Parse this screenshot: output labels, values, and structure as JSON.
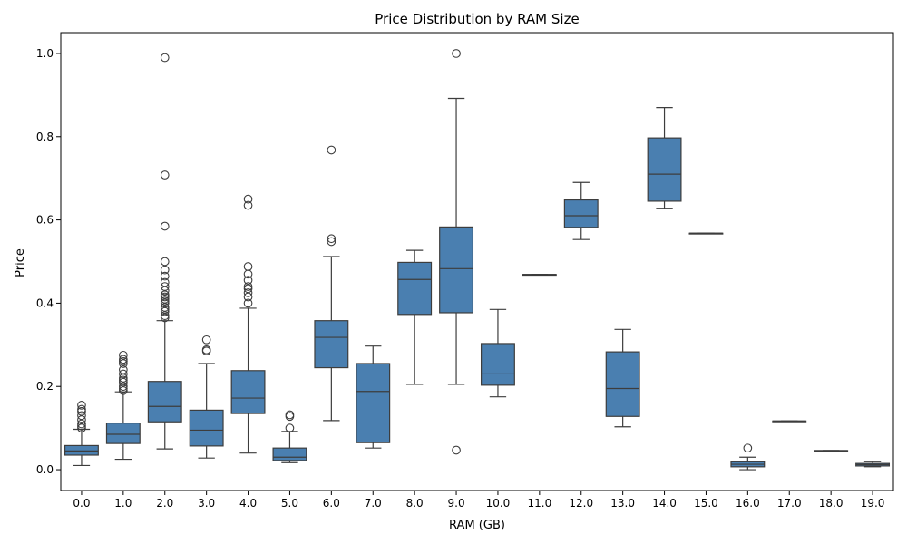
{
  "chart_data": {
    "type": "box",
    "title": "Price Distribution by RAM Size",
    "xlabel": "RAM (GB)",
    "ylabel": "Price",
    "ylim": [
      -0.05,
      1.05
    ],
    "yticks": [
      0.0,
      0.2,
      0.4,
      0.6,
      0.8,
      1.0
    ],
    "ytick_labels": [
      "0.0",
      "0.2",
      "0.4",
      "0.6",
      "0.8",
      "1.0"
    ],
    "grid": false,
    "legend": "none",
    "box_color": "#4a7fb0",
    "line_color": "#3d3d3d",
    "categories": [
      "0.0",
      "1.0",
      "2.0",
      "3.0",
      "4.0",
      "5.0",
      "6.0",
      "7.0",
      "8.0",
      "9.0",
      "10.0",
      "11.0",
      "12.0",
      "13.0",
      "14.0",
      "15.0",
      "16.0",
      "17.0",
      "18.0",
      "19.0"
    ],
    "boxes": [
      {
        "whisker_low": 0.01,
        "q1": 0.035,
        "median": 0.045,
        "q3": 0.058,
        "whisker_high": 0.097,
        "outliers": [
          0.1,
          0.105,
          0.11,
          0.12,
          0.13,
          0.14,
          0.145,
          0.155
        ]
      },
      {
        "whisker_low": 0.025,
        "q1": 0.063,
        "median": 0.085,
        "q3": 0.112,
        "whisker_high": 0.187,
        "outliers": [
          0.19,
          0.195,
          0.2,
          0.21,
          0.215,
          0.22,
          0.23,
          0.24,
          0.255,
          0.26,
          0.265,
          0.275
        ]
      },
      {
        "whisker_low": 0.05,
        "q1": 0.115,
        "median": 0.152,
        "q3": 0.212,
        "whisker_high": 0.358,
        "outliers": [
          0.365,
          0.37,
          0.38,
          0.385,
          0.39,
          0.4,
          0.405,
          0.41,
          0.415,
          0.42,
          0.43,
          0.44,
          0.45,
          0.465,
          0.48,
          0.5,
          0.585,
          0.708,
          0.99
        ]
      },
      {
        "whisker_low": 0.028,
        "q1": 0.057,
        "median": 0.095,
        "q3": 0.143,
        "whisker_high": 0.255,
        "outliers": [
          0.285,
          0.288,
          0.312
        ]
      },
      {
        "whisker_low": 0.04,
        "q1": 0.135,
        "median": 0.172,
        "q3": 0.238,
        "whisker_high": 0.388,
        "outliers": [
          0.4,
          0.415,
          0.425,
          0.435,
          0.44,
          0.455,
          0.47,
          0.488,
          0.635,
          0.65
        ]
      },
      {
        "whisker_low": 0.017,
        "q1": 0.022,
        "median": 0.03,
        "q3": 0.052,
        "whisker_high": 0.092,
        "outliers": [
          0.1,
          0.128,
          0.132
        ]
      },
      {
        "whisker_low": 0.118,
        "q1": 0.245,
        "median": 0.318,
        "q3": 0.358,
        "whisker_high": 0.512,
        "outliers": [
          0.548,
          0.555,
          0.768
        ]
      },
      {
        "whisker_low": 0.052,
        "q1": 0.065,
        "median": 0.188,
        "q3": 0.255,
        "whisker_high": 0.297,
        "outliers": []
      },
      {
        "whisker_low": 0.205,
        "q1": 0.373,
        "median": 0.457,
        "q3": 0.498,
        "whisker_high": 0.527,
        "outliers": []
      },
      {
        "whisker_low": 0.205,
        "q1": 0.377,
        "median": 0.483,
        "q3": 0.583,
        "whisker_high": 0.892,
        "outliers": [
          0.047,
          1.0
        ]
      },
      {
        "whisker_low": 0.175,
        "q1": 0.203,
        "median": 0.23,
        "q3": 0.303,
        "whisker_high": 0.385,
        "outliers": []
      },
      {
        "whisker_low": 0.469,
        "q1": 0.469,
        "median": 0.469,
        "q3": 0.469,
        "whisker_high": 0.469,
        "outliers": []
      },
      {
        "whisker_low": 0.553,
        "q1": 0.582,
        "median": 0.61,
        "q3": 0.648,
        "whisker_high": 0.69,
        "outliers": []
      },
      {
        "whisker_low": 0.103,
        "q1": 0.128,
        "median": 0.195,
        "q3": 0.283,
        "whisker_high": 0.337,
        "outliers": []
      },
      {
        "whisker_low": 0.628,
        "q1": 0.645,
        "median": 0.71,
        "q3": 0.797,
        "whisker_high": 0.87,
        "outliers": []
      },
      {
        "whisker_low": 0.568,
        "q1": 0.568,
        "median": 0.568,
        "q3": 0.568,
        "whisker_high": 0.568,
        "outliers": []
      },
      {
        "whisker_low": 0.0,
        "q1": 0.007,
        "median": 0.013,
        "q3": 0.019,
        "whisker_high": 0.03,
        "outliers": [
          0.052
        ]
      },
      {
        "whisker_low": 0.117,
        "q1": 0.117,
        "median": 0.117,
        "q3": 0.117,
        "whisker_high": 0.117,
        "outliers": []
      },
      {
        "whisker_low": 0.046,
        "q1": 0.046,
        "median": 0.046,
        "q3": 0.046,
        "whisker_high": 0.046,
        "outliers": []
      },
      {
        "whisker_low": 0.007,
        "q1": 0.009,
        "median": 0.012,
        "q3": 0.015,
        "whisker_high": 0.019,
        "outliers": []
      }
    ]
  }
}
